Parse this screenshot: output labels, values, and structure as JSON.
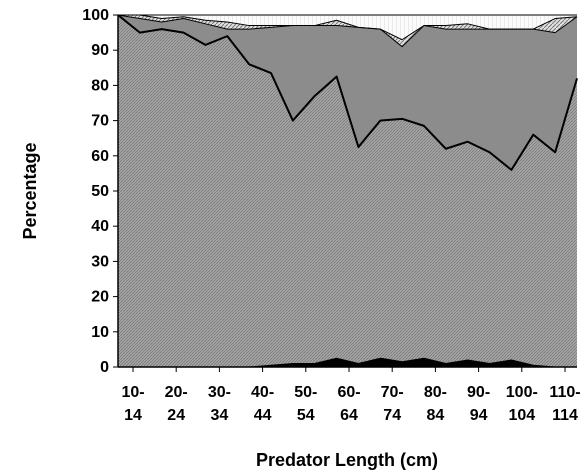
{
  "chart_data": {
    "type": "area",
    "stacked": true,
    "title": "",
    "xlabel": "Predator Length (cm)",
    "ylabel": "Percentage",
    "ylim": [
      0,
      100
    ],
    "yticks": [
      0,
      10,
      20,
      30,
      40,
      50,
      60,
      70,
      80,
      90,
      100
    ],
    "grid": false,
    "legend": "none",
    "x_tick_labels": [
      {
        "top": "10-",
        "bottom": "14"
      },
      {
        "top": "20-",
        "bottom": "24"
      },
      {
        "top": "30-",
        "bottom": "34"
      },
      {
        "top": "40-",
        "bottom": "44"
      },
      {
        "top": "50-",
        "bottom": "54"
      },
      {
        "top": "60-",
        "bottom": "64"
      },
      {
        "top": "70-",
        "bottom": "74"
      },
      {
        "top": "80-",
        "bottom": "84"
      },
      {
        "top": "90-",
        "bottom": "94"
      },
      {
        "top": "100-",
        "bottom": "104"
      },
      {
        "top": "110-",
        "bottom": "114"
      }
    ],
    "x": [
      10,
      15,
      20,
      25,
      30,
      35,
      40,
      45,
      50,
      55,
      60,
      65,
      70,
      75,
      80,
      85,
      90,
      95,
      100,
      105,
      110,
      115
    ],
    "series": [
      {
        "fill": "#000000",
        "pattern": "solid",
        "values": [
          0,
          0,
          0,
          0,
          0,
          0,
          0,
          0.5,
          1,
          1,
          2.5,
          1,
          2.5,
          1.5,
          2.5,
          1,
          2,
          1,
          2,
          0.5,
          0,
          0
        ]
      },
      {
        "fill": "#9a9a9a",
        "pattern": "hatch-fine",
        "values": [
          100,
          95,
          96,
          95,
          91.5,
          94,
          86,
          83,
          69,
          76,
          80,
          61.5,
          67.5,
          69,
          66,
          61,
          62,
          60,
          54,
          65.5,
          61,
          82
        ]
      },
      {
        "fill": "#8c8c8c",
        "pattern": "solid",
        "values": [
          0,
          4,
          2,
          4,
          6,
          2,
          10,
          13,
          27,
          20,
          14.5,
          34,
          26,
          20.5,
          28.5,
          34,
          32,
          35,
          40,
          30,
          34,
          17.5
        ]
      },
      {
        "fill": "#c8c8c8",
        "pattern": "hatch-diagonal",
        "values": [
          0,
          1,
          1,
          0.5,
          1,
          2,
          1,
          0.5,
          0,
          0,
          1.5,
          0,
          0,
          2,
          0,
          1,
          1.5,
          0,
          0,
          0,
          4,
          0
        ]
      },
      {
        "fill": "#f2f2f2",
        "pattern": "hatch-light",
        "values": [
          0,
          0,
          1,
          0.5,
          1.5,
          2,
          3,
          3,
          3,
          3,
          1.5,
          3.5,
          4,
          7,
          3,
          3,
          2.5,
          4,
          4,
          4,
          1,
          0.5
        ]
      }
    ]
  }
}
